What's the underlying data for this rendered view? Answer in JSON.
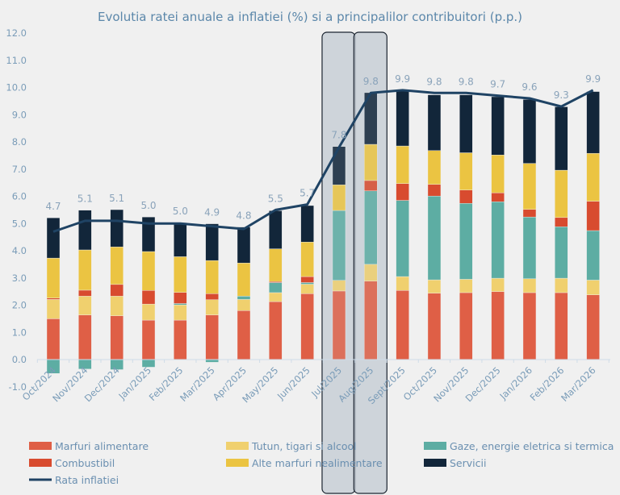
{
  "chart_data": {
    "type": "bar",
    "stacked": true,
    "title": "Evolutia ratei anuale a inflatiei (%) si a principalilor contribuitori (p.p.)",
    "xlabel": "",
    "ylabel": "",
    "ylim": [
      -1,
      12
    ],
    "yticks": [
      "-1.0",
      "0.0",
      "1.0",
      "2.0",
      "3.0",
      "4.0",
      "5.0",
      "6.0",
      "7.0",
      "8.0",
      "9.0",
      "10.0",
      "11.0",
      "12.0"
    ],
    "grid": false,
    "legend_position": "bottom",
    "categories": [
      "Oct/2024",
      "Nov/2024",
      "Dec/2024",
      "Jan/2025",
      "Feb/2025",
      "Mar/2025",
      "Apr/2025",
      "May/2025",
      "Jun/2025",
      "Jul/2025",
      "Aug/2025",
      "Sept/2025",
      "Oct/2025",
      "Nov/2025",
      "Dec/2025",
      "Jan/2026",
      "Feb/2026",
      "Mar/2026"
    ],
    "highlighted_categories": [
      "Jul/2025",
      "Aug/2025"
    ],
    "series": [
      {
        "name": "Marfuri alimentare",
        "color": "#df5f46",
        "values": [
          1.5,
          1.64,
          1.61,
          1.45,
          1.45,
          1.64,
          1.8,
          2.13,
          2.42,
          2.52,
          2.88,
          2.54,
          2.44,
          2.46,
          2.5,
          2.46,
          2.46,
          2.38
        ]
      },
      {
        "name": "Tutun, tigari si alcool",
        "color": "#f0d06e",
        "values": [
          0.71,
          0.69,
          0.72,
          0.59,
          0.56,
          0.56,
          0.41,
          0.33,
          0.35,
          0.39,
          0.62,
          0.51,
          0.49,
          0.49,
          0.49,
          0.51,
          0.53,
          0.54
        ]
      },
      {
        "name": "Gaze, energie eletrica si termica",
        "color": "#5dada3",
        "values": [
          -0.51,
          -0.35,
          -0.37,
          -0.28,
          0.05,
          -0.1,
          0.12,
          0.37,
          0.06,
          2.57,
          2.7,
          2.8,
          3.08,
          2.79,
          2.81,
          2.27,
          1.89,
          1.82
        ]
      },
      {
        "name": "Combustibil",
        "color": "#d84b2f",
        "values": [
          0.05,
          0.22,
          0.43,
          0.5,
          0.41,
          0.22,
          0.0,
          0.04,
          0.22,
          0.0,
          0.38,
          0.62,
          0.43,
          0.49,
          0.33,
          0.28,
          0.34,
          1.08
        ]
      },
      {
        "name": "Alte marfuri nealimentare",
        "color": "#ebc442",
        "values": [
          1.47,
          1.48,
          1.38,
          1.43,
          1.31,
          1.22,
          1.22,
          1.2,
          1.27,
          0.94,
          1.33,
          1.38,
          1.24,
          1.37,
          1.39,
          1.69,
          1.74,
          1.76
        ]
      },
      {
        "name": "Servicii",
        "color": "#12263a",
        "values": [
          1.48,
          1.46,
          1.37,
          1.27,
          1.25,
          1.35,
          1.32,
          1.4,
          1.34,
          1.41,
          1.9,
          2.01,
          2.05,
          2.13,
          2.14,
          2.35,
          2.33,
          2.27
        ]
      }
    ],
    "line": {
      "name": "Rata inflatiei",
      "color": "#1f4364",
      "values": [
        4.7,
        5.1,
        5.1,
        5.0,
        5.0,
        4.9,
        4.8,
        5.5,
        5.7,
        7.8,
        9.8,
        9.9,
        9.8,
        9.8,
        9.7,
        9.6,
        9.3,
        9.9
      ],
      "labels": [
        "4.7",
        "5.1",
        "5.1",
        "5.0",
        "5.0",
        "4.9",
        "4.8",
        "5.5",
        "5.7",
        "7.8",
        "9.8",
        "9.9",
        "9.8",
        "9.8",
        "9.7",
        "9.6",
        "9.3",
        "9.9"
      ]
    }
  }
}
